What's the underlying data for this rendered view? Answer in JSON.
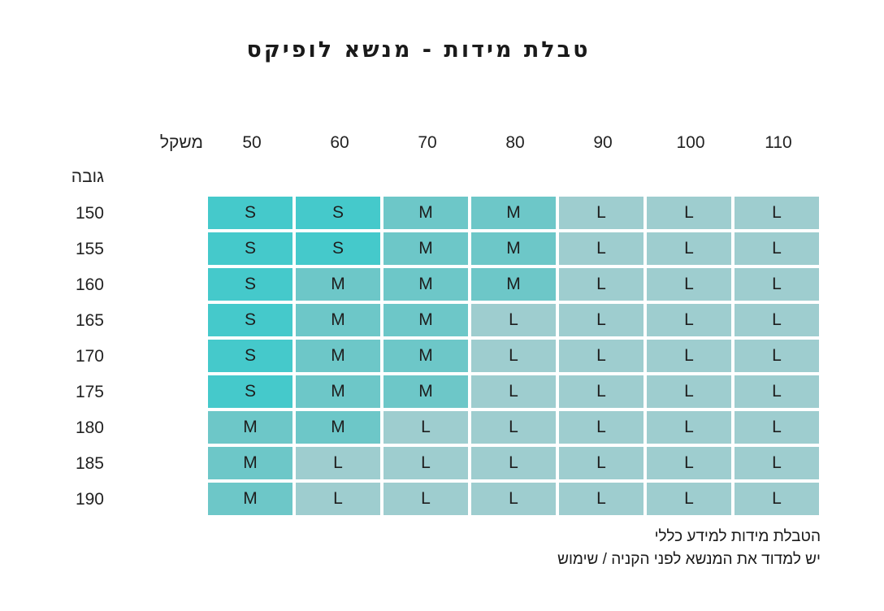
{
  "title": "טבלת מידות - מנשא לופיקס",
  "weight_label": "משקל",
  "height_label": "גובה",
  "weights": [
    "50",
    "60",
    "70",
    "80",
    "90",
    "100",
    "110"
  ],
  "heights": [
    "150",
    "155",
    "160",
    "165",
    "170",
    "175",
    "180",
    "185",
    "190"
  ],
  "sizes": [
    [
      "S",
      "S",
      "M",
      "M",
      "L",
      "L",
      "L"
    ],
    [
      "S",
      "S",
      "M",
      "M",
      "L",
      "L",
      "L"
    ],
    [
      "S",
      "M",
      "M",
      "M",
      "L",
      "L",
      "L"
    ],
    [
      "S",
      "M",
      "M",
      "L",
      "L",
      "L",
      "L"
    ],
    [
      "S",
      "M",
      "M",
      "L",
      "L",
      "L",
      "L"
    ],
    [
      "S",
      "M",
      "M",
      "L",
      "L",
      "L",
      "L"
    ],
    [
      "M",
      "M",
      "L",
      "L",
      "L",
      "L",
      "L"
    ],
    [
      "M",
      "L",
      "L",
      "L",
      "L",
      "L",
      "L"
    ],
    [
      "M",
      "L",
      "L",
      "L",
      "L",
      "L",
      "L"
    ]
  ],
  "size_colors": {
    "S": "#45c9cb",
    "M": "#6dc7c8",
    "L": "#9ecdcf"
  },
  "notes": [
    "הטבלת מידות למידע כללי",
    "יש למדוד את המנשא לפני הקניה / שימוש"
  ]
}
